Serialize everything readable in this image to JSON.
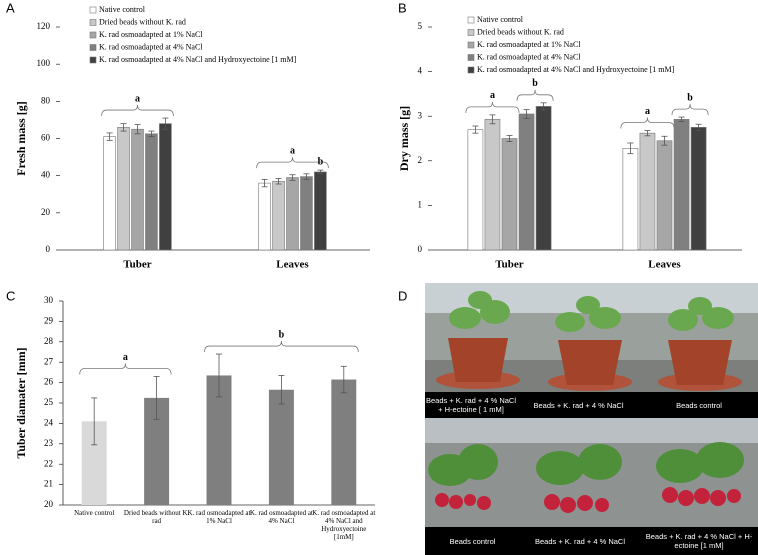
{
  "chart_data": [
    {
      "panel": "A",
      "type": "bar",
      "ylabel": "Fresh mass [g]",
      "categories": [
        "Tuber",
        "Leaves"
      ],
      "series": [
        {
          "name": "Native control",
          "color": "#ffffff",
          "values": [
            61,
            36
          ],
          "errors": [
            2,
            2
          ]
        },
        {
          "name": "Dried beads without K. rad",
          "color": "#c8c8c8",
          "values": [
            66,
            37
          ],
          "errors": [
            2,
            1.5
          ]
        },
        {
          "name": "K. rad osmoadapted at 1% NaCl",
          "color": "#a6a6a6",
          "values": [
            65,
            39
          ],
          "errors": [
            2.5,
            1.5
          ]
        },
        {
          "name": "K. rad osmoadapted at 4% NaCl",
          "color": "#808080",
          "values": [
            62.5,
            39.5
          ],
          "errors": [
            1.5,
            1.5
          ]
        },
        {
          "name": "K. rad osmoadapted at  4% NaCl and Hydroxyectoine [1 mM]",
          "color": "#404040",
          "values": [
            68,
            42
          ],
          "errors": [
            3,
            1
          ]
        }
      ],
      "ylim": [
        0,
        120
      ],
      "yticks": [
        0,
        20,
        40,
        60,
        80,
        100,
        120
      ],
      "annotations": [
        "a",
        "a",
        "b"
      ]
    },
    {
      "panel": "B",
      "type": "bar",
      "ylabel": "Dry mass [g]",
      "categories": [
        "Tuber",
        "Leaves"
      ],
      "series": [
        {
          "name": "Native control",
          "color": "#ffffff",
          "values": [
            2.7,
            2.28
          ],
          "errors": [
            0.08,
            0.12
          ]
        },
        {
          "name": "Dried beads without K. rad",
          "color": "#c8c8c8",
          "values": [
            2.93,
            2.62
          ],
          "errors": [
            0.1,
            0.06
          ]
        },
        {
          "name": "K. rad osmoadapted at 1% NaCl",
          "color": "#a6a6a6",
          "values": [
            2.5,
            2.45
          ],
          "errors": [
            0.07,
            0.1
          ]
        },
        {
          "name": "K. rad osmoadapted at 4% NaCl",
          "color": "#808080",
          "values": [
            3.05,
            2.93
          ],
          "errors": [
            0.1,
            0.05
          ]
        },
        {
          "name": "K. rad osmoadapted at  4% NaCl and Hydroxyectoine [1 mM]",
          "color": "#404040",
          "values": [
            3.22,
            2.75
          ],
          "errors": [
            0.08,
            0.07
          ]
        }
      ],
      "ylim": [
        0,
        5
      ],
      "yticks": [
        0,
        1,
        2,
        3,
        4,
        5
      ],
      "annotations": [
        "a",
        "b",
        "a",
        "b"
      ]
    },
    {
      "panel": "C",
      "type": "bar",
      "ylabel": "Tuber diamater [mm]",
      "categories": [
        "Native control",
        "Dried beads without K. rad",
        "K. rad osmoadapted at 1% NaCl",
        "K. rad osmoadapted at 4% NaCl",
        "K. rad osmoadapted at 4% NaCl and Hydroxyectoine [1mM]"
      ],
      "values": [
        24.1,
        25.25,
        26.35,
        25.65,
        26.15
      ],
      "errors": [
        1.15,
        1.05,
        1.05,
        0.7,
        0.65
      ],
      "colors": [
        "#d9d9d9",
        "#7f7f7f",
        "#7f7f7f",
        "#7f7f7f",
        "#7f7f7f"
      ],
      "ylim": [
        20,
        30
      ],
      "yticks": [
        20,
        21,
        22,
        23,
        24,
        25,
        26,
        27,
        28,
        29,
        30
      ],
      "annotations": [
        "a",
        "b"
      ]
    }
  ],
  "photo": {
    "panel": "D",
    "top_labels": [
      "Beads + K. rad + 4 % NaCl + H-ectoine [ 1 mM]",
      "Beads + K. rad + 4 % NaCl",
      "Beads control"
    ],
    "bottom_labels": [
      "Beads control",
      "Beads + K. rad + 4 % NaCl",
      "Beads + K. rad + 4 % NaCl + H-ectoine [1 mM]"
    ]
  }
}
